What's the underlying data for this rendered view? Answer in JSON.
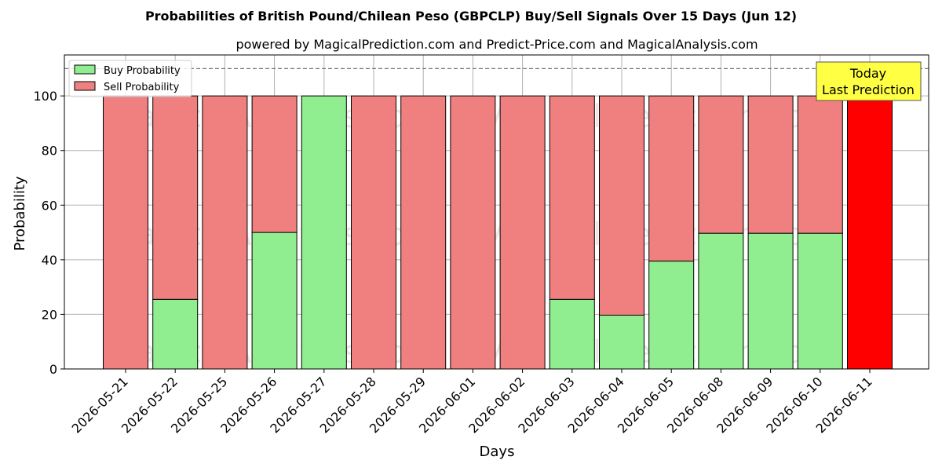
{
  "chart_data": {
    "type": "bar",
    "stacked": true,
    "title": "Probabilities of British Pound/Chilean Peso (GBPCLP) Buy/Sell Signals Over 15 Days (Jun 12)",
    "subtitle": "powered by MagicalPrediction.com and Predict-Price.com and MagicalAnalysis.com",
    "xlabel": "Days",
    "ylabel": "Probability",
    "ylim": [
      0,
      115
    ],
    "yticks": [
      0,
      20,
      40,
      60,
      80,
      100
    ],
    "reference_line": 110,
    "grid": true,
    "legend_position": "top-left",
    "categories": [
      "2026-05-21",
      "2026-05-22",
      "2026-05-25",
      "2026-05-26",
      "2026-05-27",
      "2026-05-28",
      "2026-05-29",
      "2026-06-01",
      "2026-06-02",
      "2026-06-03",
      "2026-06-04",
      "2026-06-05",
      "2026-06-08",
      "2026-06-09",
      "2026-06-10",
      "2026-06-11"
    ],
    "series": [
      {
        "name": "Buy Probability",
        "color": "#90ee90",
        "values": [
          0,
          25.5,
          0,
          50,
          100,
          0,
          0,
          0,
          0,
          25.5,
          19.7,
          39.5,
          49.7,
          49.7,
          49.7,
          0
        ]
      },
      {
        "name": "Sell Probability",
        "color": "#f08080",
        "values": [
          100,
          74.5,
          100,
          50,
          0,
          100,
          100,
          100,
          100,
          74.5,
          80.3,
          60.5,
          50.3,
          50.3,
          50.3,
          100
        ]
      }
    ],
    "highlight": {
      "index": 15,
      "color": "#ff0000"
    },
    "annotation": {
      "line1": "Today",
      "line2": "Last Prediction",
      "color": "#ffff44"
    },
    "watermarks": [
      "MagicalAnalysis.com",
      "MagicalPrediction.com"
    ]
  }
}
